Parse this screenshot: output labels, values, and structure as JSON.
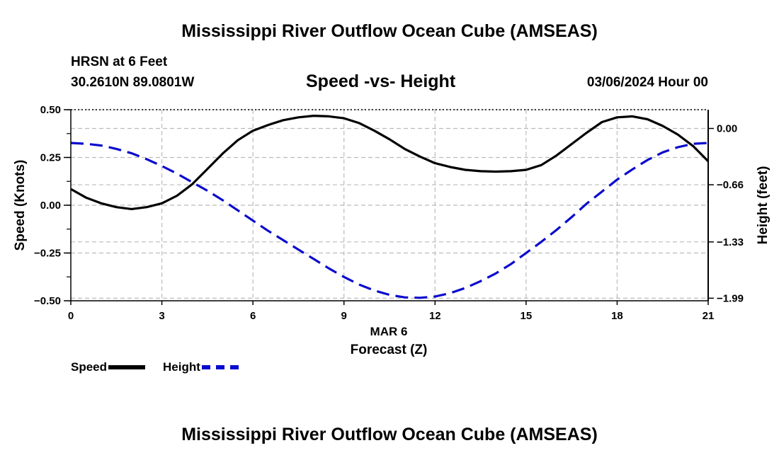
{
  "header": {
    "title": "Mississippi River Outflow Ocean Cube (AMSEAS)",
    "station": "HRSN at 6 Feet",
    "coords": "30.2610N  89.0801W",
    "subtitle": "Speed -vs- Height",
    "datetime": "03/06/2024 Hour 00"
  },
  "footer": {
    "title": "Mississippi River Outflow Ocean Cube (AMSEAS)"
  },
  "legend": {
    "speed_label": "Speed",
    "height_label": "Height"
  },
  "colors": {
    "speed": "#000000",
    "height": "#0a0acd",
    "grid": "#bbbbbb"
  },
  "chart_data": {
    "type": "line",
    "title": "Speed -vs- Height",
    "xlabel": "Forecast (Z)",
    "xsublabel": "MAR 6",
    "ylabel": "Speed (Knots)",
    "y2label": "Height (feet)",
    "xlim": [
      0,
      21
    ],
    "ylim": [
      -0.5,
      0.5
    ],
    "y2lim": [
      -2.02,
      0.22
    ],
    "x_ticks": [
      0,
      3,
      6,
      9,
      12,
      15,
      18,
      21
    ],
    "x_tick_labels": [
      "0",
      "3",
      "6",
      "9",
      "12",
      "15",
      "18",
      "21"
    ],
    "y_ticks": [
      0.5,
      0.25,
      0.0,
      -0.25,
      -0.5
    ],
    "y_tick_labels": [
      "0.50",
      "0.25",
      "0.00",
      "−0.25",
      "−0.50"
    ],
    "y2_ticks": [
      0.0,
      -0.66,
      -1.33,
      -1.99
    ],
    "y2_tick_labels": [
      "0.00",
      "−0.66",
      "−1.33",
      "−1.99"
    ],
    "series": [
      {
        "name": "Speed",
        "axis": "left",
        "style": "solid",
        "x": [
          0,
          0.5,
          1,
          1.5,
          2,
          2.5,
          3,
          3.5,
          4,
          4.5,
          5,
          5.5,
          6,
          6.5,
          7,
          7.5,
          8,
          8.5,
          9,
          9.5,
          10,
          10.5,
          11,
          11.5,
          12,
          12.5,
          13,
          13.5,
          14,
          14.5,
          15,
          15.5,
          16,
          16.5,
          17,
          17.5,
          18,
          18.5,
          19,
          19.5,
          20,
          20.5,
          21
        ],
        "values": [
          0.085,
          0.04,
          0.01,
          -0.01,
          -0.02,
          -0.01,
          0.01,
          0.05,
          0.11,
          0.19,
          0.27,
          0.34,
          0.39,
          0.42,
          0.445,
          0.46,
          0.468,
          0.465,
          0.455,
          0.43,
          0.39,
          0.345,
          0.295,
          0.255,
          0.22,
          0.2,
          0.185,
          0.178,
          0.176,
          0.178,
          0.185,
          0.21,
          0.26,
          0.32,
          0.38,
          0.435,
          0.46,
          0.465,
          0.45,
          0.415,
          0.37,
          0.31,
          0.23
        ]
      },
      {
        "name": "Height",
        "axis": "right",
        "style": "dashed",
        "x": [
          0,
          0.5,
          1,
          1.5,
          2,
          2.5,
          3,
          3.5,
          4,
          4.5,
          5,
          5.5,
          6,
          6.5,
          7,
          7.5,
          8,
          8.5,
          9,
          9.5,
          10,
          10.5,
          11,
          11.5,
          12,
          12.5,
          13,
          13.5,
          14,
          14.5,
          15,
          15.5,
          16,
          16.5,
          17,
          17.5,
          18,
          18.5,
          19,
          19.5,
          20,
          20.5,
          21
        ],
        "values": [
          -0.17,
          -0.18,
          -0.2,
          -0.24,
          -0.29,
          -0.36,
          -0.44,
          -0.53,
          -0.63,
          -0.73,
          -0.84,
          -0.96,
          -1.08,
          -1.2,
          -1.31,
          -1.42,
          -1.53,
          -1.64,
          -1.74,
          -1.83,
          -1.9,
          -1.95,
          -1.98,
          -1.985,
          -1.97,
          -1.93,
          -1.87,
          -1.79,
          -1.7,
          -1.59,
          -1.46,
          -1.33,
          -1.19,
          -1.04,
          -0.88,
          -0.74,
          -0.6,
          -0.48,
          -0.37,
          -0.28,
          -0.22,
          -0.18,
          -0.17
        ]
      }
    ]
  }
}
